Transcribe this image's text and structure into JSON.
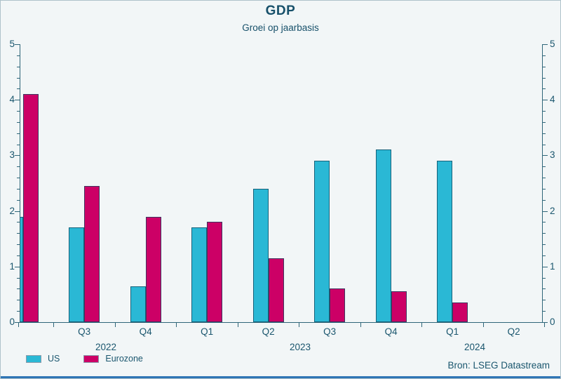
{
  "header": {
    "title": "GDP",
    "subtitle": "Groei op jaarbasis"
  },
  "source": "Bron: LSEG Datastream",
  "legend": [
    {
      "label": "US",
      "color": "#2ab8d5"
    },
    {
      "label": "Eurozone",
      "color": "#cc0066"
    }
  ],
  "colors": {
    "us_fill": "#2ab8d5",
    "us_border": "#17627a",
    "eurozone_fill": "#cc0066",
    "eurozone_border": "#3f3660",
    "text": "#1a566e",
    "axis": "#2f6679",
    "background": "#f2f6f7",
    "bottom_strip": "#2e74b5"
  },
  "chart_data": {
    "type": "bar",
    "title": "GDP",
    "subtitle": "Groei op jaarbasis",
    "categories": [
      "Q2 2022 (clipped at left edge)",
      "Q3 2022",
      "Q4 2022",
      "Q1 2023",
      "Q2 2023",
      "Q3 2023",
      "Q4 2023",
      "Q1 2024",
      "Q2 2024"
    ],
    "x_tick_labels": [
      "Q3",
      "Q4",
      "Q1",
      "Q2",
      "Q3",
      "Q4",
      "Q1",
      "Q2"
    ],
    "year_labels": [
      "2022",
      "2023",
      "2024"
    ],
    "series": [
      {
        "name": "US",
        "color": "#2ab8d5",
        "values": [
          1.9,
          1.7,
          0.65,
          1.7,
          2.4,
          2.9,
          3.1,
          2.9,
          null
        ]
      },
      {
        "name": "Eurozone",
        "color": "#cc0066",
        "values": [
          4.1,
          2.45,
          1.9,
          1.8,
          1.15,
          0.6,
          0.55,
          0.35,
          null
        ]
      }
    ],
    "ylabel": "",
    "xlabel": "",
    "ylim": [
      0,
      5
    ],
    "y_major_step": 1,
    "y_minor_step": 0.2,
    "dual_y_axis": true,
    "legend_position": "bottom-left",
    "grid": false,
    "first_pair_clipped": true
  }
}
